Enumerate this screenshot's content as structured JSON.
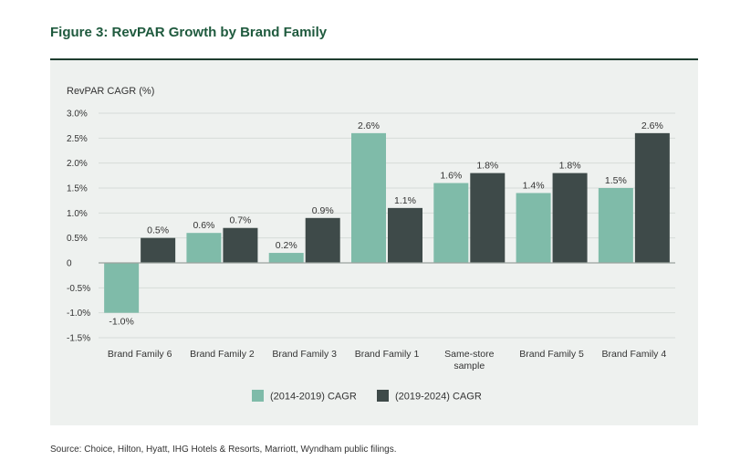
{
  "figure": {
    "title": "Figure 3: RevPAR Growth by Brand Family",
    "source": "Source: Choice, Hilton, Hyatt, IHG Hotels & Resorts, Marriott, Wyndham public filings."
  },
  "colors": {
    "series1": "#7fbba9",
    "series2": "#3e4a49",
    "grid": "#d6dcd8",
    "axis": "#9aa39f",
    "panel": "#eef1ef",
    "title": "#1f5a3e"
  },
  "chart_data": {
    "type": "bar",
    "ylabel": "RevPAR CAGR (%)",
    "ylim": [
      -1.5,
      3.0
    ],
    "yticks": [
      3.0,
      2.5,
      2.0,
      1.5,
      1.0,
      0.5,
      0,
      -0.5,
      -1.0,
      -1.5
    ],
    "ytick_labels": [
      "3.0%",
      "2.5%",
      "2.0%",
      "1.5%",
      "1.0%",
      "0.5%",
      "0",
      "-0.5%",
      "-1.0%",
      "-1.5%"
    ],
    "categories": [
      [
        "Brand Family 6"
      ],
      [
        "Brand Family 2"
      ],
      [
        "Brand Family 3"
      ],
      [
        "Brand Family 1"
      ],
      [
        "Same-store",
        "sample"
      ],
      [
        "Brand Family 5"
      ],
      [
        "Brand Family 4"
      ]
    ],
    "series": [
      {
        "name": "(2014-2019) CAGR",
        "values": [
          -1.0,
          0.6,
          0.2,
          2.6,
          1.6,
          1.4,
          1.5
        ],
        "labels": [
          "-1.0%",
          "0.6%",
          "0.2%",
          "2.6%",
          "1.6%",
          "1.4%",
          "1.5%"
        ]
      },
      {
        "name": "(2019-2024) CAGR",
        "values": [
          0.5,
          0.7,
          0.9,
          1.1,
          1.8,
          1.8,
          2.6
        ],
        "labels": [
          "0.5%",
          "0.7%",
          "0.9%",
          "1.1%",
          "1.8%",
          "1.8%",
          "2.6%"
        ]
      }
    ],
    "legend_position": "bottom-center",
    "grid": true
  }
}
